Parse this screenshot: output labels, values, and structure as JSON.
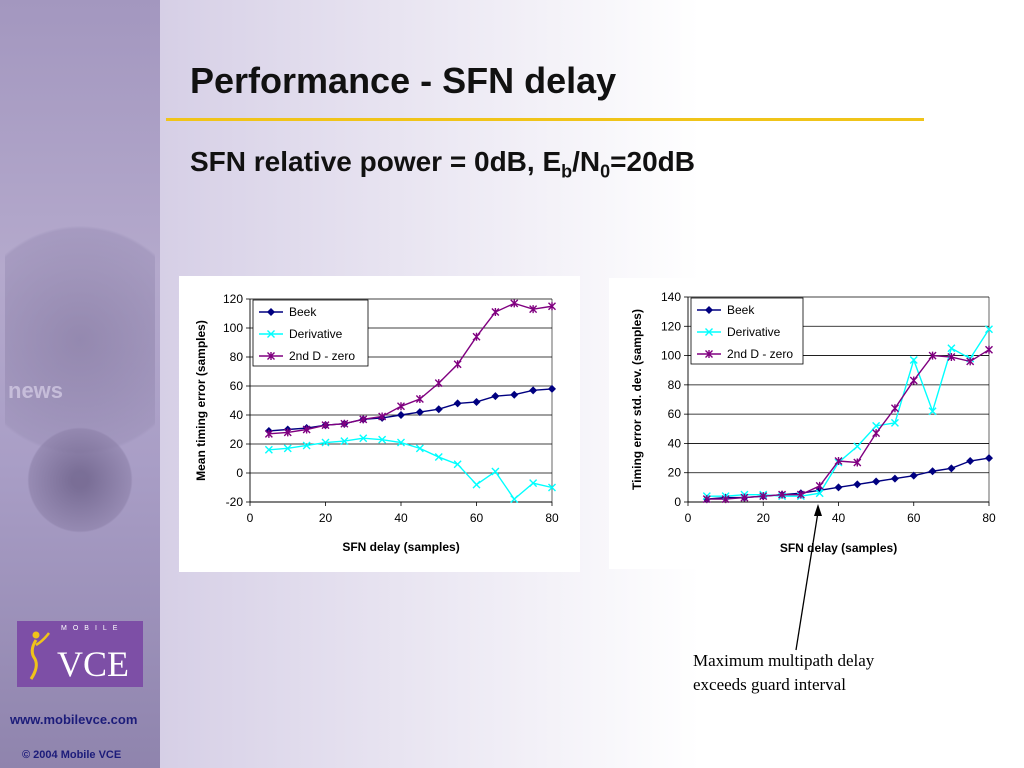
{
  "slide": {
    "title": "Performance - SFN delay",
    "subtitle": {
      "main": "SFN relative power = 0dB, E",
      "sub_b": "b",
      "mid": "/N",
      "sub_0": "0",
      "tail": "=20dB"
    },
    "annotation": [
      "Maximum multipath delay",
      "exceeds guard interval"
    ],
    "website": "www.mobilevce.com",
    "copyright": "© 2004 Mobile VCE",
    "logo": {
      "tagline": "MOBILE",
      "name": "VCE",
      "color": "#7d4fa6"
    },
    "background_text": "news",
    "colors": {
      "rule": "#f0c419",
      "beek": "#000080",
      "derivative": "#00ffff",
      "zero": "#800080"
    }
  },
  "chart_data": [
    {
      "type": "line",
      "xlabel": "SFN delay (samples)",
      "ylabel": "Mean timing error (samples)",
      "xlim": [
        0,
        80
      ],
      "ylim": [
        -20,
        120
      ],
      "xticks": [
        0,
        20,
        40,
        60,
        80
      ],
      "yticks": [
        -20,
        0,
        20,
        40,
        60,
        80,
        100,
        120
      ],
      "grid": "horizontal",
      "legend_position": "top-left",
      "x": [
        5,
        10,
        15,
        20,
        25,
        30,
        35,
        40,
        45,
        50,
        55,
        60,
        65,
        70,
        75,
        80
      ],
      "series": [
        {
          "name": "Beek",
          "color": "#000080",
          "marker": "diamond",
          "values": [
            29,
            30,
            31,
            33,
            34,
            37,
            38,
            40,
            42,
            44,
            48,
            49,
            53,
            54,
            57,
            58
          ]
        },
        {
          "name": "Derivative",
          "color": "#00ffff",
          "marker": "x",
          "values": [
            16,
            17,
            19,
            21,
            22,
            24,
            23,
            21,
            17,
            11,
            6,
            -8,
            1,
            -18,
            -7,
            -10
          ]
        },
        {
          "name": "2nd D - zero",
          "color": "#800080",
          "marker": "star",
          "values": [
            27,
            28,
            30,
            33,
            34,
            37,
            39,
            46,
            51,
            62,
            75,
            94,
            111,
            117,
            113,
            115
          ]
        }
      ]
    },
    {
      "type": "line",
      "xlabel": "SFN delay (samples)",
      "ylabel": "Timing error std. dev. (samples)",
      "xlim": [
        0,
        80
      ],
      "ylim": [
        0,
        140
      ],
      "xticks": [
        0,
        20,
        40,
        60,
        80
      ],
      "yticks": [
        0,
        20,
        40,
        60,
        80,
        100,
        120,
        140
      ],
      "grid": "horizontal",
      "legend_position": "top-left",
      "x": [
        5,
        10,
        15,
        20,
        25,
        30,
        35,
        40,
        45,
        50,
        55,
        60,
        65,
        70,
        75,
        80
      ],
      "series": [
        {
          "name": "Beek",
          "color": "#000080",
          "marker": "diamond",
          "values": [
            2,
            3,
            3,
            4,
            5,
            6,
            8,
            10,
            12,
            14,
            16,
            18,
            21,
            23,
            28,
            30
          ]
        },
        {
          "name": "Derivative",
          "color": "#00ffff",
          "marker": "x",
          "values": [
            4,
            4,
            5,
            5,
            4,
            4,
            6,
            27,
            38,
            52,
            54,
            97,
            62,
            105,
            98,
            118
          ]
        },
        {
          "name": "2nd D - zero",
          "color": "#800080",
          "marker": "star",
          "values": [
            2,
            2,
            3,
            4,
            5,
            5,
            11,
            28,
            27,
            47,
            64,
            83,
            100,
            99,
            96,
            104
          ]
        }
      ]
    }
  ]
}
